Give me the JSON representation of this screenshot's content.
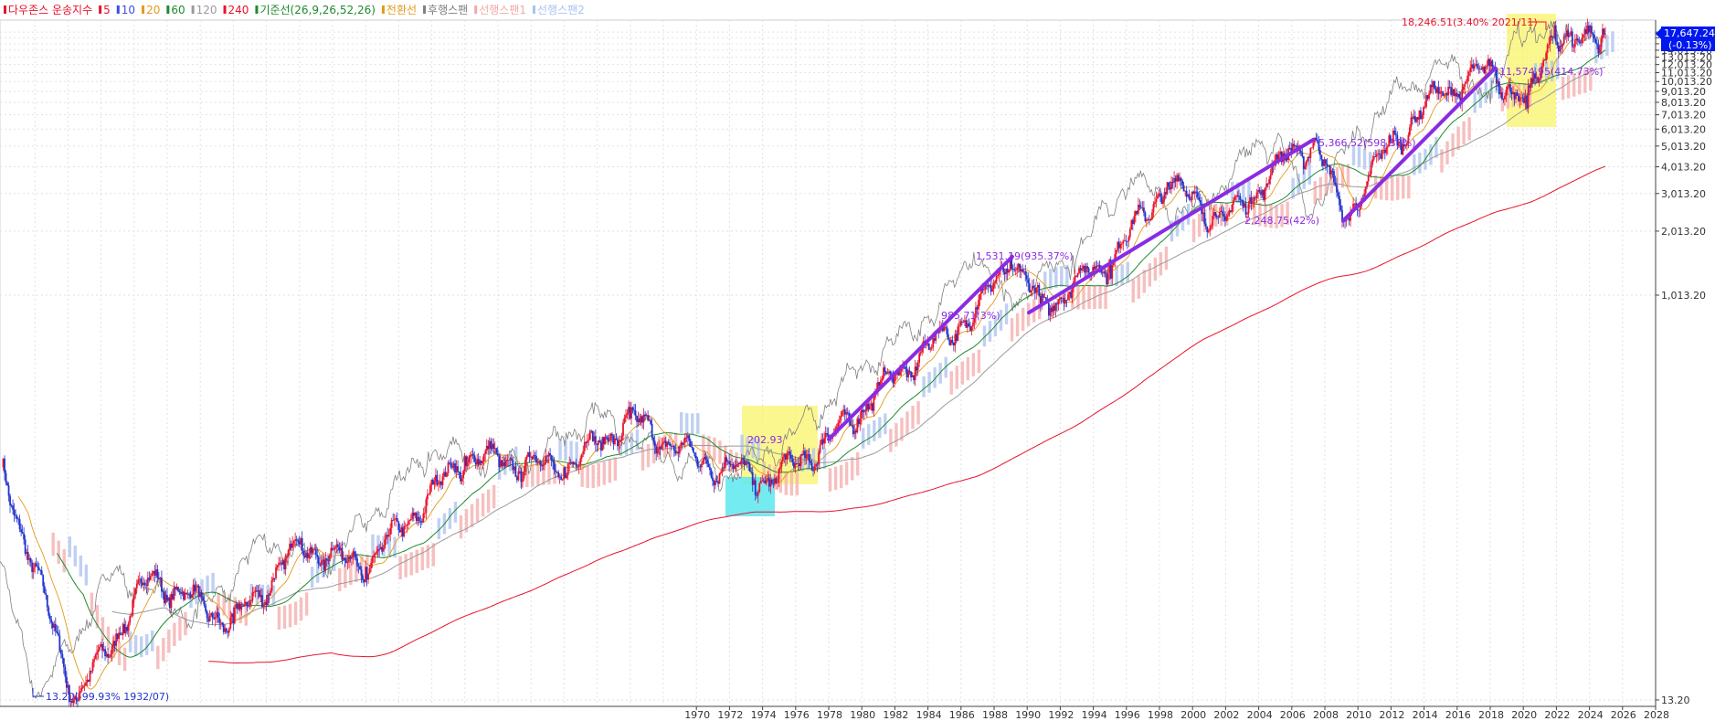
{
  "legend": [
    {
      "label": "다우존스 운송지수",
      "color": "#e8132b"
    },
    {
      "label": "5",
      "color": "#e8132b"
    },
    {
      "label": "10",
      "color": "#3a4ee0"
    },
    {
      "label": "20",
      "color": "#e39a1c"
    },
    {
      "label": "60",
      "color": "#1e8a2e"
    },
    {
      "label": "120",
      "color": "#9b9b9b"
    },
    {
      "label": "240",
      "color": "#e8132b"
    },
    {
      "label": "기준선(26,9,26,52,26)",
      "color": "#1e8a2e"
    },
    {
      "label": "전환선",
      "color": "#e39a1c"
    },
    {
      "label": "후행스팬",
      "color": "#808080"
    },
    {
      "label": "선행스팬1",
      "color": "#f4a8a8"
    },
    {
      "label": "선행스팬2",
      "color": "#a8c4f0"
    }
  ],
  "colors": {
    "candle_up": "#e8132b",
    "candle_down": "#2233cc",
    "ma5": "#e8132b",
    "ma10": "#3a4ee0",
    "ma20": "#e39a1c",
    "ma60": "#1e8a2e",
    "ma120": "#9b9b9b",
    "ma240": "#e8132b",
    "lagging_span": "#808080",
    "cloud_bull": "#f6b4b4",
    "cloud_bear": "#b5c8f0",
    "trend_line": "#8a2be2",
    "highlight_yellow": "#faf46a",
    "highlight_cyan": "#5ce8ee",
    "current_price_bg": "#0018f0"
  },
  "current_price": {
    "value": "17,647.24",
    "change": "(-0.13%)"
  },
  "annotations": {
    "max": "18,246.51(3.40% 2021/11)",
    "min": "13.20(-99.93% 1932/07)",
    "low_1974": "202.93",
    "peak_1989": "1,531.19(935.37%)",
    "low_1990": "985.71(3%)",
    "peak_2007": "5,366.52(598.33%)",
    "low_2009": "2,248.75(42%)",
    "post_2020": "11,574.95(414.73%)"
  },
  "chart_data": {
    "type": "line",
    "title": "다우존스 운송지수",
    "y_scale": "log",
    "y_tick_labels": [
      "17,013.20",
      "16,013.20",
      "15,013.20",
      "14,013.20",
      "13,013.20",
      "12,013.20",
      "11,013.20",
      "10,013.20",
      "9,013.20",
      "8,013.20",
      "7,013.20",
      "6,013.20",
      "5,013.20",
      "4,013.20",
      "3,013.20",
      "2,013.20",
      "1,013.20",
      "13.20"
    ],
    "x_tick_labels": [
      "1970",
      "1972",
      "1974",
      "1976",
      "1978",
      "1980",
      "1982",
      "1984",
      "1986",
      "1988",
      "1990",
      "1992",
      "1994",
      "1996",
      "1998",
      "2000",
      "2002",
      "2004",
      "2006",
      "2008",
      "2010",
      "2012",
      "2014",
      "2016",
      "2018",
      "2020",
      "2022",
      "2024",
      "2026",
      "2028"
    ],
    "x": [
      1928,
      1932.5,
      1937,
      1942,
      1946,
      1950,
      1956,
      1962,
      1966,
      1970,
      1974.5,
      1978,
      1982,
      1987,
      1989,
      1990.8,
      1995,
      1998.5,
      2002,
      2006,
      2007.5,
      2009.1,
      2012,
      2015,
      2018.3,
      2020.2,
      2021.9,
      2023,
      2024.8
    ],
    "values": [
      160,
      13.2,
      50,
      30,
      70,
      55,
      180,
      160,
      270,
      175,
      140,
      215,
      430,
      870,
      1530,
      900,
      1480,
      3400,
      2250,
      4700,
      5350,
      2250,
      5200,
      9000,
      11500,
      7500,
      18246,
      14500,
      17647
    ],
    "ylim": [
      10,
      20000
    ],
    "trend_lines": [
      {
        "x": [
          1978,
          1989.1
        ],
        "values": [
          216,
          1531
        ]
      },
      {
        "x": [
          1990.1,
          2007.3
        ],
        "values": [
          840,
          5366
        ]
      },
      {
        "x": [
          2009.1,
          2018.3
        ],
        "values": [
          2248,
          11575
        ]
      }
    ],
    "grid": true
  }
}
